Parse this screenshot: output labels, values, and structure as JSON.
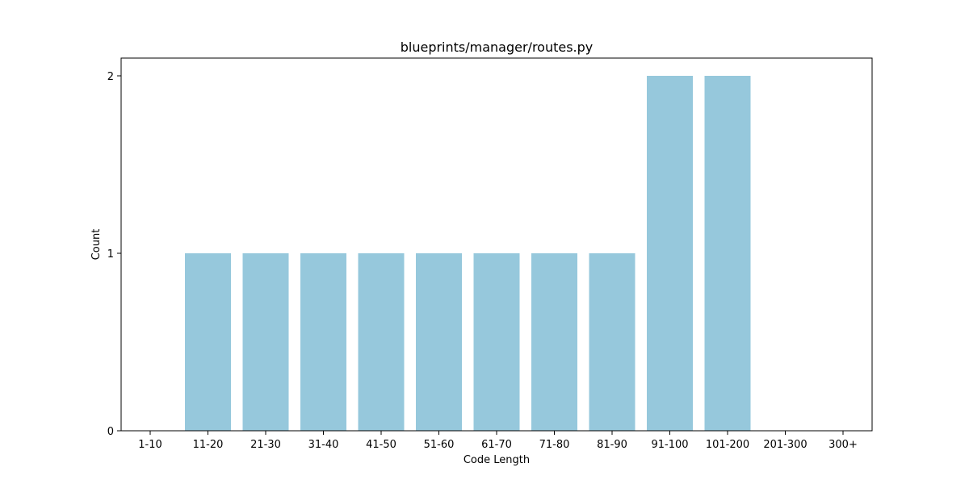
{
  "chart_data": {
    "type": "bar",
    "title": "blueprints/manager/routes.py",
    "xlabel": "Code Length",
    "ylabel": "Count",
    "categories": [
      "1-10",
      "11-20",
      "21-30",
      "31-40",
      "41-50",
      "51-60",
      "61-70",
      "71-80",
      "81-90",
      "91-100",
      "101-200",
      "201-300",
      "300+"
    ],
    "values": [
      0,
      1,
      1,
      1,
      1,
      1,
      1,
      1,
      1,
      2,
      2,
      0,
      0
    ],
    "ylim": [
      0,
      2.1
    ],
    "yticks": [
      0,
      1,
      2
    ],
    "bar_color": "#96c8dc",
    "grid": false,
    "legend": "none"
  }
}
